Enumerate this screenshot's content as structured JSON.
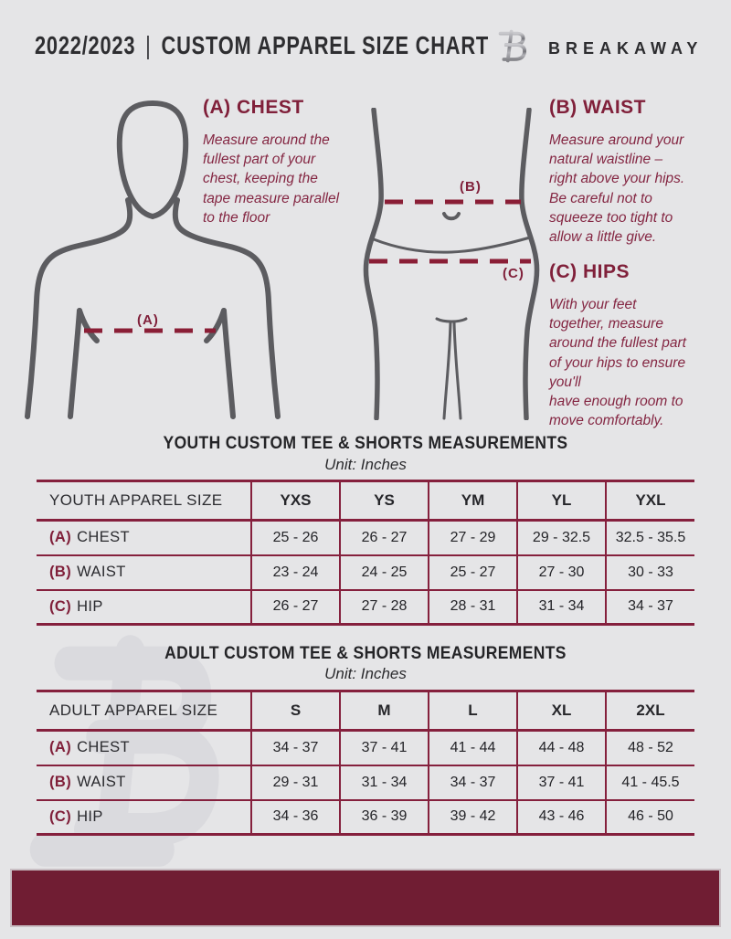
{
  "header": {
    "year": "2022/2023",
    "separator": "|",
    "title": "CUSTOM APPAREL SIZE CHART",
    "brand": "BREAKAWAY"
  },
  "colors": {
    "accent_maroon": "#80203a",
    "footer_maroon": "#701d33",
    "background": "#e5e5e7",
    "figure_gray": "#5c5c60"
  },
  "measure_guide": {
    "chest": {
      "label": "(A)",
      "heading": "(A) CHEST",
      "body": "Measure around the\nfullest part of your\nchest, keeping the\ntape measure parallel\nto the floor"
    },
    "waist": {
      "label": "(B)",
      "heading": "(B) WAIST",
      "body": "Measure around your\nnatural waistline –\nright above your hips.\nBe careful not to\nsqueeze too tight to\nallow a little give."
    },
    "hips": {
      "label": "(C)",
      "heading": "(C) HIPS",
      "body": "With your feet\ntogether, measure\naround the fullest part\nof your hips to ensure\nyou'll\nhave enough room to\nmove comfortably."
    }
  },
  "tables": {
    "youth": {
      "title": "YOUTH CUSTOM TEE & SHORTS MEASUREMENTS",
      "unit": "Unit: Inches",
      "header": [
        "YOUTH APPAREL SIZE",
        "YXS",
        "YS",
        "YM",
        "YL",
        "YXL"
      ],
      "rows": [
        {
          "label_prefix": "(A)",
          "label": "CHEST",
          "values": [
            "25 - 26",
            "26 - 27",
            "27 - 29",
            "29 - 32.5",
            "32.5 - 35.5"
          ]
        },
        {
          "label_prefix": "(B)",
          "label": "WAIST",
          "values": [
            "23 - 24",
            "24 - 25",
            "25 - 27",
            "27 - 30",
            "30 - 33"
          ]
        },
        {
          "label_prefix": "(C)",
          "label": "HIP",
          "values": [
            "26 - 27",
            "27 - 28",
            "28 - 31",
            "31 - 34",
            "34 - 37"
          ]
        }
      ]
    },
    "adult": {
      "title": "ADULT CUSTOM TEE & SHORTS MEASUREMENTS",
      "unit": "Unit: Inches",
      "header": [
        "ADULT APPAREL SIZE",
        "S",
        "M",
        "L",
        "XL",
        "2XL"
      ],
      "rows": [
        {
          "label_prefix": "(A)",
          "label": "CHEST",
          "values": [
            "34 - 37",
            "37 - 41",
            "41 - 44",
            "44 - 48",
            "48 - 52"
          ]
        },
        {
          "label_prefix": "(B)",
          "label": "WAIST",
          "values": [
            "29 - 31",
            "31 - 34",
            "34 - 37",
            "37 - 41",
            "41 - 45.5"
          ]
        },
        {
          "label_prefix": "(C)",
          "label": "HIP",
          "values": [
            "34 - 36",
            "36 - 39",
            "39 - 42",
            "43 - 46",
            "46 - 50"
          ]
        }
      ]
    }
  },
  "watermark_letter": "B"
}
